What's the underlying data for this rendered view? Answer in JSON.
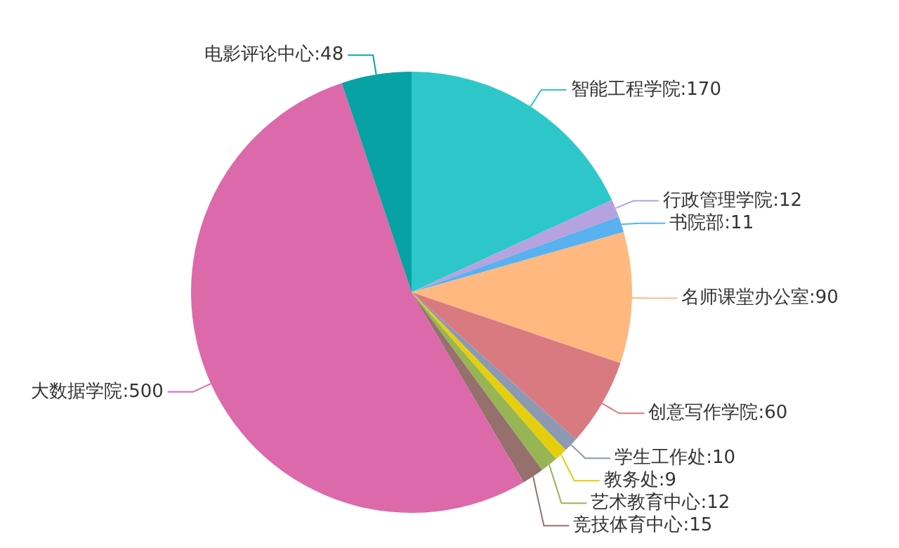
{
  "chart_data": {
    "type": "pie",
    "categories": [
      "智能工程学院",
      "行政管理学院",
      "书院部",
      "名师课堂办公室",
      "创意写作学院",
      "学生工作处",
      "教务处",
      "艺术教育中心",
      "竞技体育中心",
      "大数据学院",
      "电影评论中心"
    ],
    "values": [
      170,
      12,
      11,
      90,
      60,
      10,
      9,
      12,
      15,
      500,
      48
    ],
    "colors": [
      "#2ec7c9",
      "#b6a2de",
      "#5ab1ef",
      "#ffb980",
      "#d87a80",
      "#8d98b3",
      "#e5cf0d",
      "#97b552",
      "#95706d",
      "#dc69aa",
      "#07a2a4"
    ],
    "value_labels": [
      ":170",
      ":12",
      ":11",
      ":90",
      ":60",
      ":10",
      ":9",
      ":12",
      ":15",
      ":500",
      ":48"
    ],
    "legend": false
  }
}
